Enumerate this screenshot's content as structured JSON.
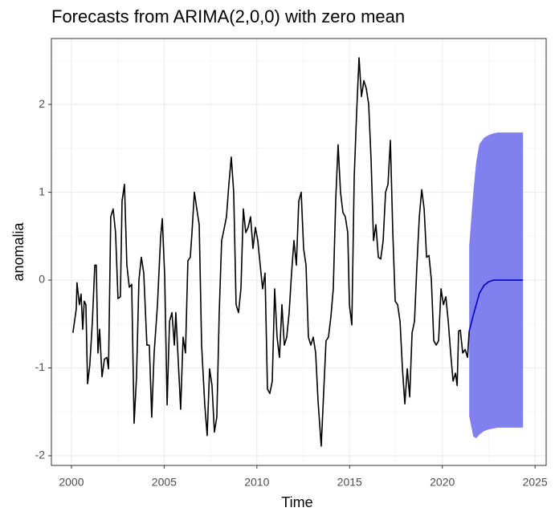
{
  "chart_data": {
    "type": "forecast_line",
    "title": "Forecasts from ARIMA(2,0,0) with zero mean",
    "x_label": "Time",
    "y_label": "anomalia",
    "xlim": [
      1998.92,
      2025.6
    ],
    "ylim": [
      -2.11,
      2.75
    ],
    "xticks": [
      2000,
      2005,
      2010,
      2015,
      2020,
      2025
    ],
    "yticks": [
      -2,
      -1,
      0,
      1,
      2
    ],
    "grid": true,
    "observed": {
      "color": "#000000",
      "x": [
        2000.08,
        2000.26,
        2000.3,
        2000.43,
        2000.52,
        2000.61,
        2000.69,
        2000.78,
        2000.87,
        2000.99,
        2001.13,
        2001.26,
        2001.34,
        2001.43,
        2001.52,
        2001.65,
        2001.78,
        2001.91,
        2002.0,
        2002.12,
        2002.25,
        2002.38,
        2002.51,
        2002.64,
        2002.73,
        2002.86,
        2002.99,
        2003.12,
        2003.25,
        2003.38,
        2003.51,
        2003.64,
        2003.77,
        2003.9,
        2004.07,
        2004.2,
        2004.33,
        2004.46,
        2004.64,
        2004.81,
        2004.9,
        2005.03,
        2005.16,
        2005.29,
        2005.42,
        2005.55,
        2005.63,
        2005.76,
        2005.89,
        2006.02,
        2006.15,
        2006.28,
        2006.41,
        2006.5,
        2006.63,
        2006.76,
        2006.89,
        2007.02,
        2007.19,
        2007.32,
        2007.45,
        2007.58,
        2007.71,
        2007.84,
        2007.97,
        2008.1,
        2008.23,
        2008.36,
        2008.49,
        2008.62,
        2008.75,
        2008.88,
        2009.01,
        2009.14,
        2009.27,
        2009.4,
        2009.53,
        2009.66,
        2009.79,
        2009.92,
        2010.05,
        2010.18,
        2010.31,
        2010.44,
        2010.57,
        2010.7,
        2010.83,
        2010.96,
        2011.09,
        2011.22,
        2011.35,
        2011.48,
        2011.61,
        2011.74,
        2011.87,
        2012.0,
        2012.13,
        2012.26,
        2012.39,
        2012.52,
        2012.65,
        2012.78,
        2012.91,
        2013.04,
        2013.17,
        2013.3,
        2013.47,
        2013.6,
        2013.73,
        2013.86,
        2013.99,
        2014.12,
        2014.25,
        2014.38,
        2014.51,
        2014.64,
        2014.77,
        2014.9,
        2014.99,
        2015.12,
        2015.25,
        2015.38,
        2015.51,
        2015.64,
        2015.77,
        2015.9,
        2016.03,
        2016.16,
        2016.29,
        2016.42,
        2016.55,
        2016.68,
        2016.81,
        2016.94,
        2017.07,
        2017.2,
        2017.33,
        2017.46,
        2017.59,
        2017.72,
        2017.85,
        2017.98,
        2018.11,
        2018.24,
        2018.37,
        2018.5,
        2018.63,
        2018.76,
        2018.89,
        2019.02,
        2019.15,
        2019.28,
        2019.41,
        2019.54,
        2019.67,
        2019.8,
        2019.93,
        2020.06,
        2020.19,
        2020.32,
        2020.45,
        2020.58,
        2020.71,
        2020.8,
        2020.88,
        2020.97,
        2021.1,
        2021.23,
        2021.36,
        2021.45
      ],
      "values": [
        -0.6,
        -0.33,
        -0.03,
        -0.28,
        -0.16,
        -0.56,
        -0.24,
        -0.28,
        -1.18,
        -0.97,
        -0.47,
        0.17,
        0.17,
        -0.83,
        -0.56,
        -1.1,
        -0.9,
        -0.88,
        -1.01,
        0.72,
        0.81,
        0.54,
        -0.21,
        -0.19,
        0.9,
        1.09,
        0.17,
        -0.08,
        -0.05,
        -1.63,
        -1.1,
        0,
        0.26,
        0.08,
        -0.74,
        -0.74,
        -1.56,
        -0.83,
        -0.28,
        0.49,
        0.7,
        0.04,
        -1.42,
        -0.47,
        -0.37,
        -0.74,
        -0.37,
        -0.92,
        -1.47,
        -0.65,
        -0.83,
        0.22,
        0.26,
        0.54,
        1.0,
        0.81,
        0.63,
        -0.74,
        -1.42,
        -1.77,
        -1.01,
        -1.2,
        -1.73,
        -1.56,
        -0.37,
        0.45,
        0.58,
        0.72,
        1.09,
        1.4,
        1.0,
        -0.28,
        -0.37,
        -0.1,
        0.81,
        0.54,
        0.6,
        0.72,
        0.36,
        0.6,
        0.45,
        0.17,
        -0.1,
        0.08,
        -1.24,
        -1.29,
        -1.15,
        -0.1,
        -0.65,
        -0.88,
        -0.28,
        -0.74,
        -0.65,
        -0.37,
        0.08,
        0.45,
        0.17,
        0.9,
        1.0,
        0.36,
        0.17,
        -0.65,
        -0.74,
        -0.65,
        -0.83,
        -1.38,
        -1.89,
        -1.29,
        -0.69,
        -0.65,
        -0.42,
        -0.1,
        0.9,
        1.54,
        1.0,
        0.77,
        0.72,
        0.54,
        -0.28,
        -0.51,
        1.18,
        1.91,
        2.53,
        2.09,
        2.27,
        2.18,
        2.0,
        1.36,
        0.45,
        0.63,
        0.26,
        0.24,
        0.45,
        1.0,
        1.09,
        1.59,
        0.54,
        -0.24,
        -0.28,
        -0.47,
        -1.01,
        -1.41,
        -1.01,
        -1.33,
        -0.6,
        -0.47,
        0.17,
        0.72,
        1.03,
        0.81,
        0.26,
        0.28,
        0,
        -0.69,
        -0.74,
        -0.69,
        -0.1,
        -0.28,
        -0.19,
        -0.47,
        -0.83,
        -1.15,
        -1.06,
        -1.2,
        -0.58,
        -0.57,
        -0.83,
        -0.79,
        -0.88,
        -0.58
      ]
    },
    "forecast": {
      "color": "#0000cc",
      "band_color": "#8080ee",
      "x": [
        2021.45,
        2021.67,
        2021.83,
        2022.0,
        2022.25,
        2022.5,
        2022.75,
        2023.0,
        2023.5,
        2024.0,
        2024.35
      ],
      "values": [
        -0.58,
        -0.4,
        -0.28,
        -0.15,
        -0.06,
        -0.02,
        0,
        0,
        0,
        0,
        0
      ],
      "lower": [
        -1.55,
        -1.78,
        -1.8,
        -1.76,
        -1.72,
        -1.7,
        -1.69,
        -1.68,
        -1.68,
        -1.68,
        -1.68
      ],
      "upper": [
        0.39,
        1.0,
        1.35,
        1.55,
        1.62,
        1.65,
        1.67,
        1.68,
        1.68,
        1.68,
        1.68
      ]
    }
  }
}
